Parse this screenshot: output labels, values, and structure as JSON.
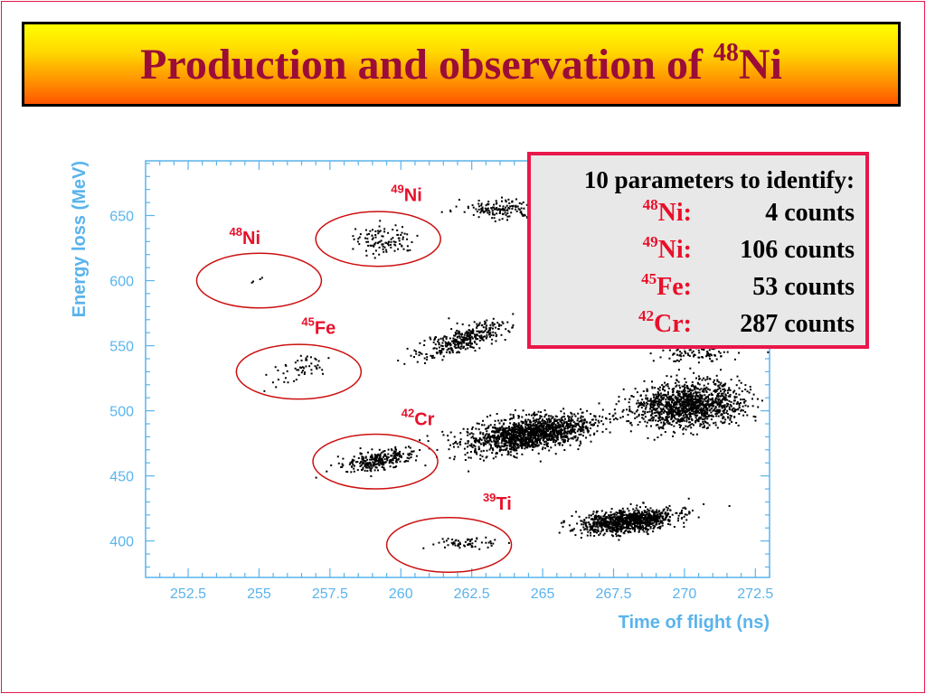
{
  "slide": {
    "title": {
      "prefix": "Production and observation of ",
      "mass": "48",
      "element": "Ni"
    }
  },
  "info_box": {
    "heading": "10 parameters to identify:",
    "rows": [
      {
        "mass": "48",
        "element": "Ni:",
        "count": "4 counts"
      },
      {
        "mass": "49",
        "element": "Ni:",
        "count": "106 counts"
      },
      {
        "mass": "45",
        "element": "Fe:",
        "count": "53 counts"
      },
      {
        "mass": "42",
        "element": "Cr:",
        "count": "287 counts"
      }
    ]
  },
  "colors": {
    "border": "#e8174a",
    "title_text": "#9b0d38",
    "axis": "#5ab4ec",
    "annotation": "#e8102a",
    "ellipse": "#cc1010",
    "points": "#000000"
  },
  "chart_data": {
    "type": "scatter",
    "xlabel": "Time of flight (ns)",
    "ylabel": "Energy loss (MeV)",
    "xlim": [
      251,
      273
    ],
    "ylim": [
      372,
      692
    ],
    "xticks": [
      252.5,
      255,
      257.5,
      260,
      262.5,
      265,
      267.5,
      270,
      272.5
    ],
    "xtick_labels": [
      "252.5",
      "255",
      "257.5",
      "260",
      "262.5",
      "265",
      "267.5",
      "270",
      "272.5"
    ],
    "yticks": [
      400,
      450,
      500,
      550,
      600,
      650
    ],
    "ytick_labels": [
      "400",
      "450",
      "500",
      "550",
      "600",
      "650"
    ],
    "grid": false,
    "clusters": [
      {
        "x": 254.9,
        "y": 602,
        "count": 4
      },
      {
        "x": 259.4,
        "y": 632,
        "count": 106
      },
      {
        "x": 256.4,
        "y": 532,
        "count": 53
      },
      {
        "x": 259.2,
        "y": 463,
        "count": 287
      },
      {
        "x": 262.4,
        "y": 399,
        "count": 60
      },
      {
        "x": 262.1,
        "y": 555,
        "count": 350
      },
      {
        "x": 264.5,
        "y": 483,
        "count": 1500
      },
      {
        "x": 268.0,
        "y": 416,
        "count": 1000
      },
      {
        "x": 270.1,
        "y": 505,
        "count": 1300
      },
      {
        "x": 263.5,
        "y": 656,
        "count": 150
      },
      {
        "x": 270.4,
        "y": 546,
        "count": 100
      }
    ],
    "annotations": [
      {
        "mass": "48",
        "element": "Ni",
        "ellipse_center": [
          255.0,
          600
        ],
        "ellipse_radii": [
          2.2,
          21
        ],
        "label_at": [
          254.5,
          628
        ]
      },
      {
        "mass": "49",
        "element": "Ni",
        "ellipse_center": [
          259.2,
          632
        ],
        "ellipse_radii": [
          2.2,
          21
        ],
        "label_at": [
          260.2,
          661
        ]
      },
      {
        "mass": "45",
        "element": "Fe",
        "ellipse_center": [
          256.4,
          530
        ],
        "ellipse_radii": [
          2.2,
          21
        ],
        "label_at": [
          257.1,
          559
        ]
      },
      {
        "mass": "42",
        "element": "Cr",
        "ellipse_center": [
          259.1,
          461
        ],
        "ellipse_radii": [
          2.2,
          21
        ],
        "label_at": [
          260.6,
          489
        ]
      },
      {
        "mass": "39",
        "element": "Ti",
        "ellipse_center": [
          261.7,
          397
        ],
        "ellipse_radii": [
          2.2,
          21
        ],
        "label_at": [
          263.4,
          424
        ]
      }
    ]
  }
}
